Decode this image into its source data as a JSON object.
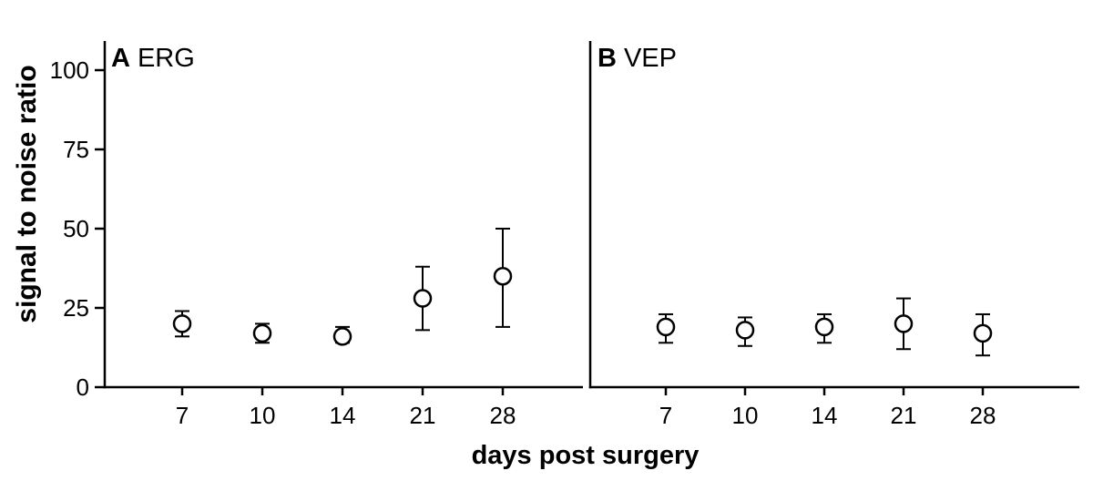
{
  "figure": {
    "ylabel": "signal to noise ratio",
    "xlabel": "days post surgery"
  },
  "chart_data": {
    "type": "scatter",
    "categories": [
      7,
      10,
      14,
      21,
      28
    ],
    "xlabel": "days post surgery",
    "ylabel": "signal to noise ratio",
    "ylim": [
      0,
      109
    ],
    "yticks": [
      0,
      25,
      50,
      75,
      100
    ],
    "grid": false,
    "legend": "none",
    "marker": "open-circle",
    "error_bars": true,
    "panels": [
      {
        "letter": "A",
        "title": "ERG",
        "means": [
          20,
          17,
          16,
          28,
          35
        ],
        "err_high": [
          24,
          20,
          19,
          38,
          50
        ],
        "err_low": [
          16,
          14,
          14,
          18,
          19
        ]
      },
      {
        "letter": "B",
        "title": "VEP",
        "means": [
          19,
          18,
          19,
          20,
          17
        ],
        "err_high": [
          23,
          22,
          23,
          28,
          23
        ],
        "err_low": [
          14,
          13,
          14,
          12,
          10
        ]
      }
    ]
  }
}
